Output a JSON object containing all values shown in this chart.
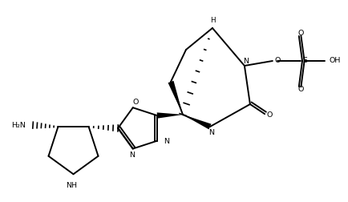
{
  "bg": "#ffffff",
  "lc": "#000000",
  "lw": 1.4,
  "fs": 6.8,
  "figsize": [
    4.35,
    2.52
  ],
  "dpi": 100,
  "xlim": [
    0,
    10.0
  ],
  "ylim": [
    0,
    5.8
  ]
}
